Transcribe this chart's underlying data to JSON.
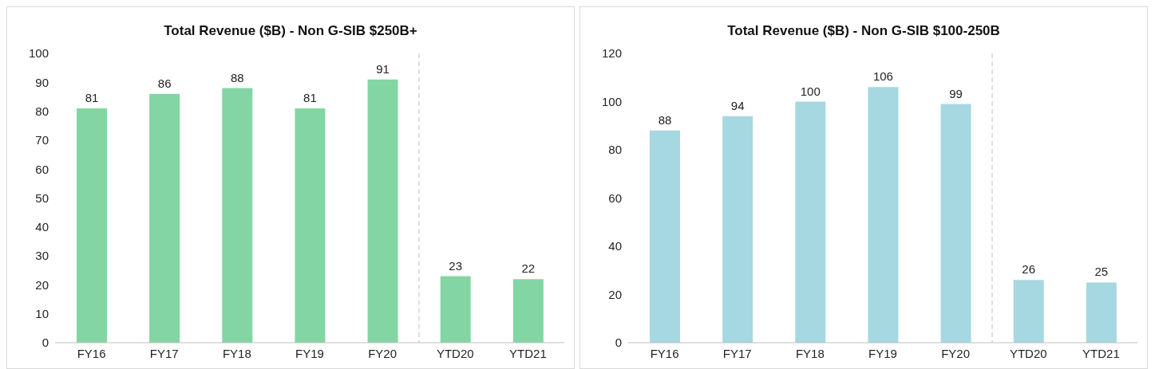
{
  "chart_data": [
    {
      "type": "bar",
      "title": "Total Revenue ($B) - Non G-SIB $250B+",
      "categories": [
        "FY16",
        "FY17",
        "FY18",
        "FY19",
        "FY20",
        "YTD20",
        "YTD21"
      ],
      "values": [
        81,
        86,
        88,
        81,
        91,
        23,
        22
      ],
      "color": "#83d6a3",
      "ylim": [
        0,
        100
      ],
      "yticks": [
        0,
        10,
        20,
        30,
        40,
        50,
        60,
        70,
        80,
        90,
        100
      ],
      "grid": false,
      "data_labels": true
    },
    {
      "type": "bar",
      "title": "Total Revenue ($B) - Non G-SIB $100-250B",
      "categories": [
        "FY16",
        "FY17",
        "FY18",
        "FY19",
        "FY20",
        "YTD20",
        "YTD21"
      ],
      "values": [
        88,
        94,
        100,
        106,
        99,
        26,
        25
      ],
      "color": "#a5d8e1",
      "ylim": [
        0,
        120
      ],
      "yticks": [
        0,
        20,
        40,
        60,
        80,
        100,
        120
      ],
      "grid": false,
      "data_labels": true
    }
  ]
}
